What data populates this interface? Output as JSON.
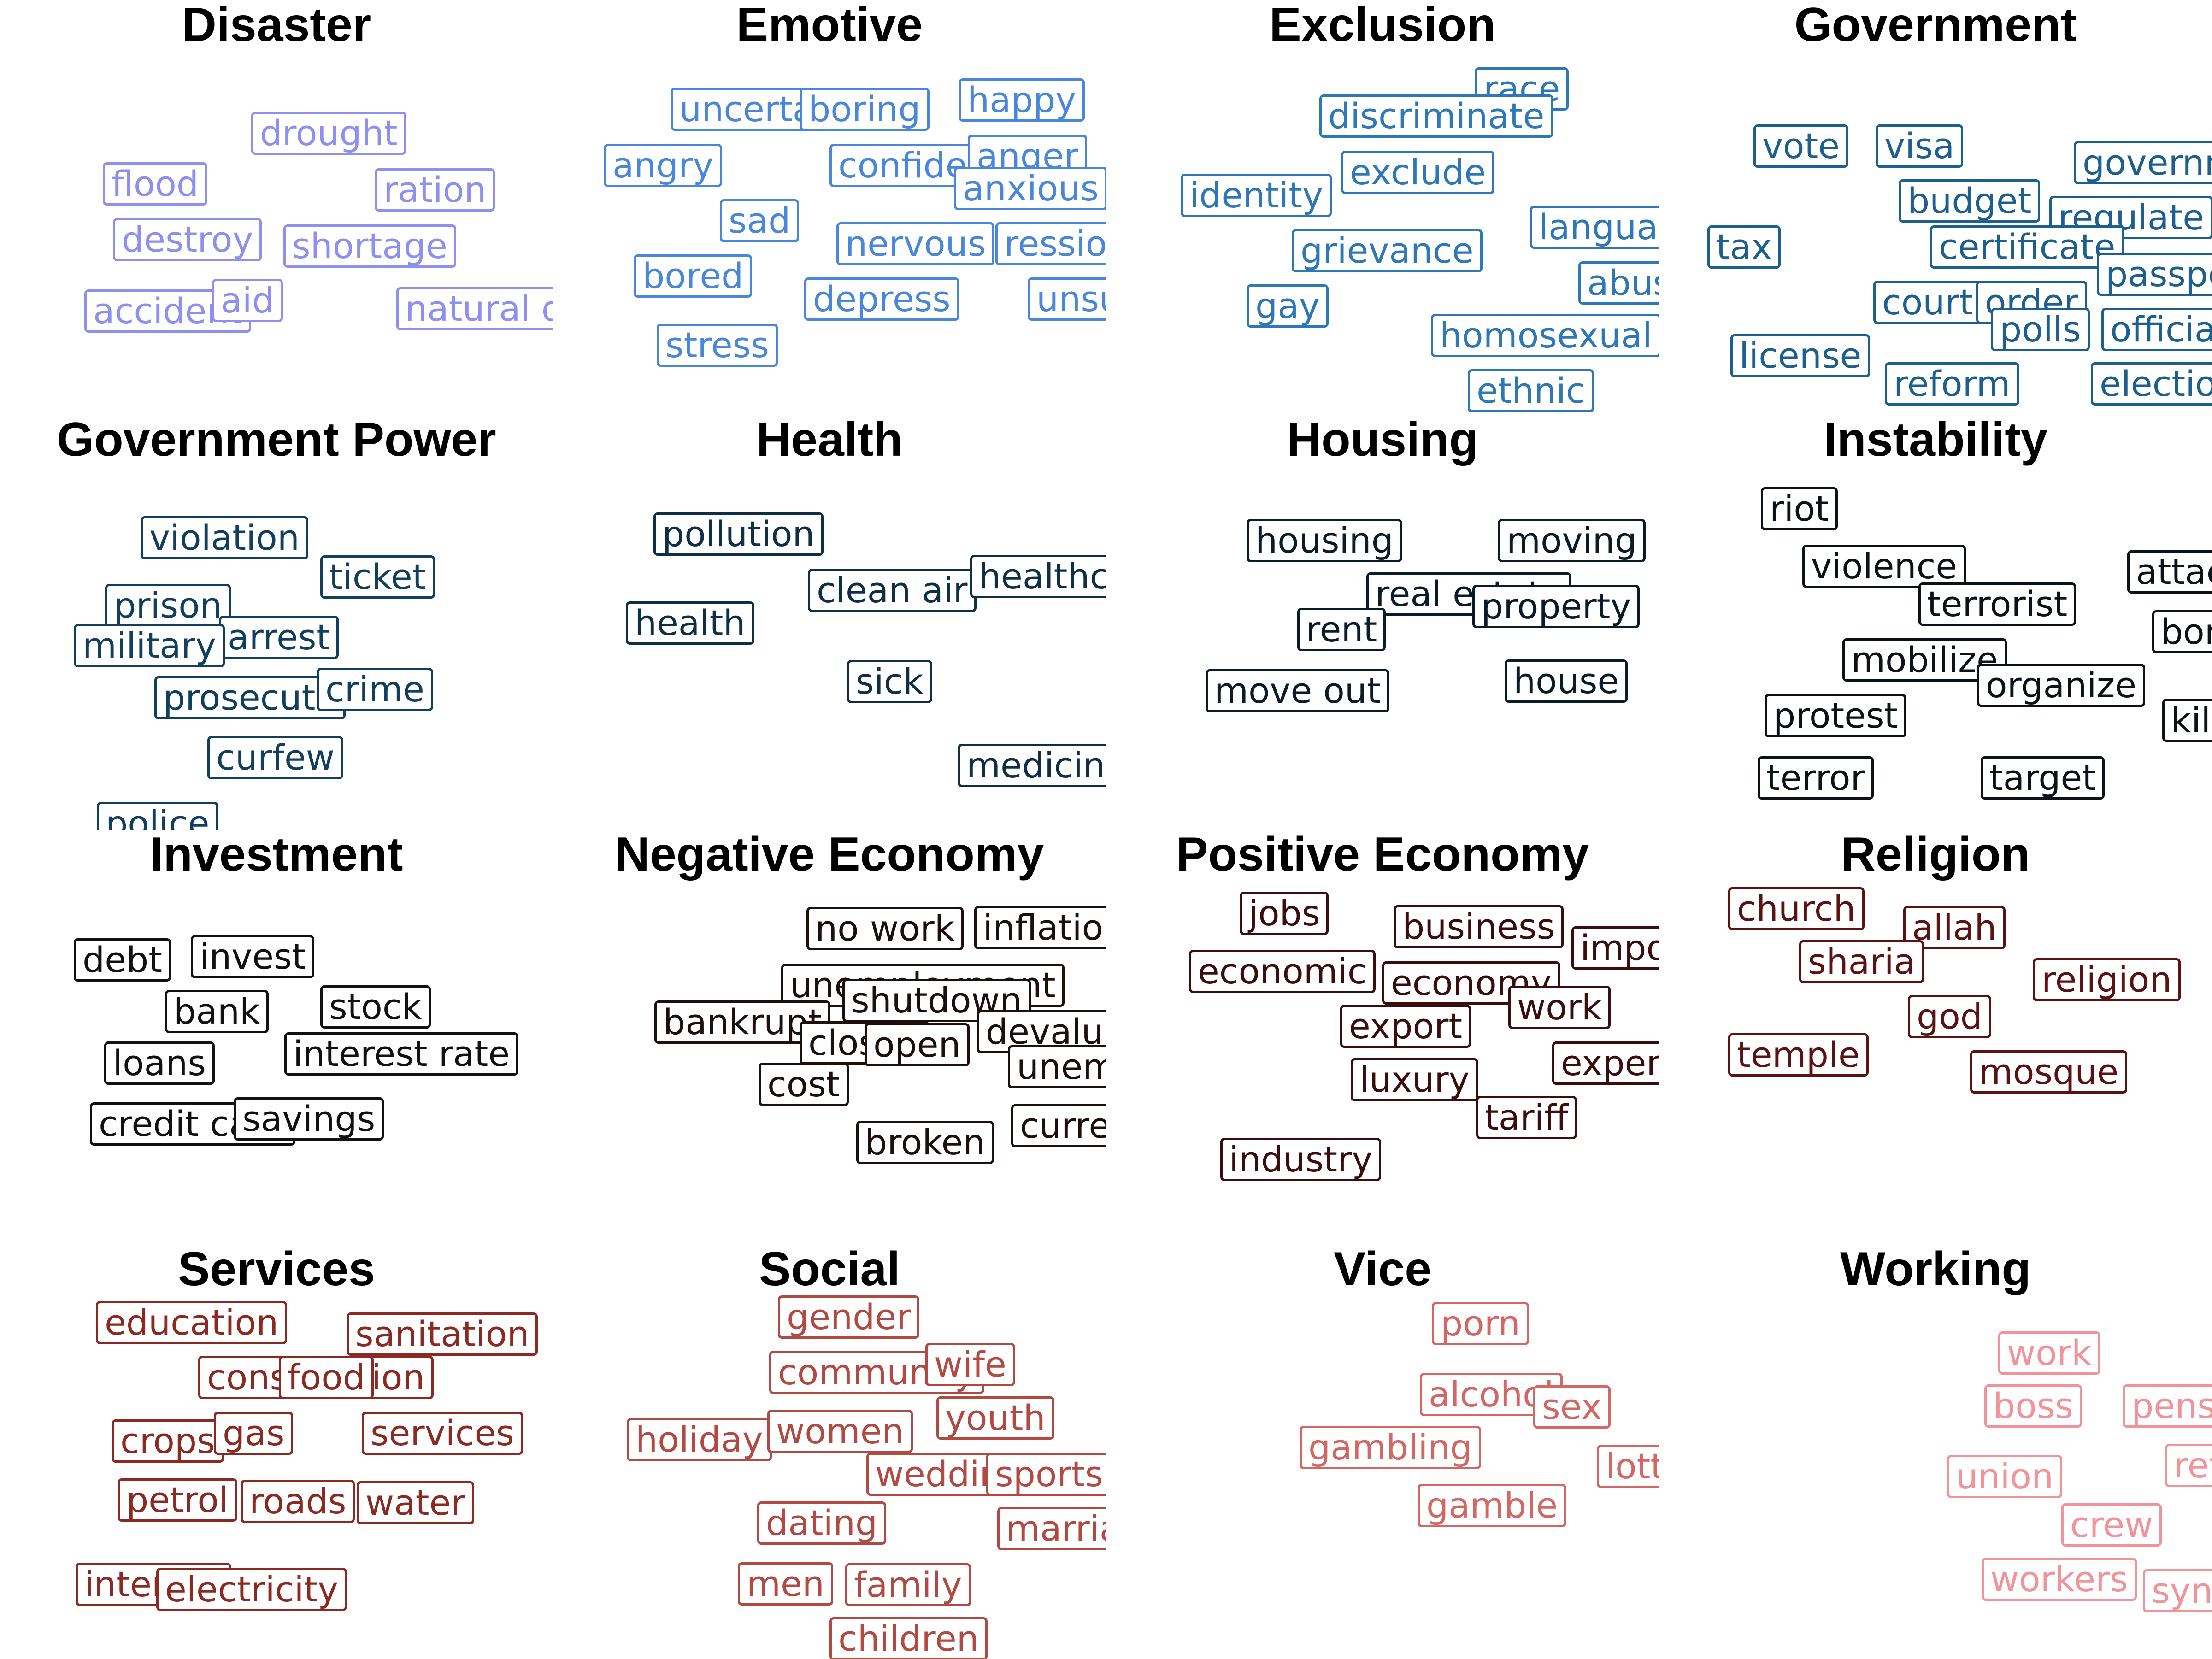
{
  "panels": [
    {
      "title": "Disaster",
      "color": "#8f8ff0",
      "words": [
        "drought",
        "flood",
        "ration",
        "destroy",
        "shortage",
        "accident",
        "aid",
        "natural disaster"
      ]
    },
    {
      "title": "Emotive",
      "color": "#4a86d9",
      "words": [
        "uncertain",
        "boring",
        "happy",
        "angry",
        "confident",
        "anger",
        "anxious",
        "sad",
        "nervous",
        "ression",
        "bored",
        "depress",
        "unsure",
        "stress"
      ]
    },
    {
      "title": "Exclusion",
      "color": "#2e78b8",
      "words": [
        "race",
        "discriminate",
        "exclude",
        "identity",
        "language",
        "grievance",
        "abuse",
        "gay",
        "homosexual",
        "ethnic"
      ]
    },
    {
      "title": "Government",
      "color": "#1d5f8f",
      "words": [
        "vote",
        "visa",
        "government",
        "budget",
        "regulate",
        "tax",
        "certificate",
        "passport",
        "court",
        "order",
        "polls",
        "official",
        "license",
        "reform",
        "election"
      ]
    },
    {
      "title": "Government Power",
      "color": "#123f5e",
      "words": [
        "violation",
        "ticket",
        "prison",
        "arrest",
        "military",
        "prosecute",
        "crime",
        "curfew",
        "police"
      ]
    },
    {
      "title": "Health",
      "color": "#0e2f45",
      "words": [
        "pollution",
        "clean air",
        "healthcare",
        "health",
        "sick",
        "medicine"
      ]
    },
    {
      "title": "Housing",
      "color": "#0b1c29",
      "words": [
        "housing",
        "moving",
        "real estate",
        "property",
        "rent",
        "move out",
        "house"
      ]
    },
    {
      "title": "Instability",
      "color": "#0d1118",
      "words": [
        "riot",
        "violence",
        "attack",
        "terrorist",
        "bombing",
        "mobilize",
        "organize",
        "protest",
        "kill",
        "terror",
        "target"
      ]
    },
    {
      "title": "Investment",
      "color": "#111111",
      "words": [
        "debt",
        "invest",
        "bank",
        "stock",
        "loans",
        "interest rate",
        "credit card",
        "savings"
      ]
    },
    {
      "title": "Negative Economy",
      "color": "#1e0f0f",
      "words": [
        "no work",
        "inflation",
        "unemployment",
        "shutdown",
        "bankrupt",
        "devalue",
        "closed",
        "open",
        "unemploy",
        "cost",
        "currency",
        "broken"
      ]
    },
    {
      "title": "Positive Economy",
      "color": "#3a0e0e",
      "words": [
        "jobs",
        "business",
        "import",
        "economic",
        "economy",
        "work",
        "export",
        "expensive",
        "luxury",
        "tariff",
        "industry"
      ]
    },
    {
      "title": "Religion",
      "color": "#5a1212",
      "words": [
        "church",
        "allah",
        "sharia",
        "religion",
        "god",
        "temple",
        "mosque"
      ]
    },
    {
      "title": "Services",
      "color": "#8a2a22",
      "words": [
        "education",
        "sanitation",
        "construction",
        "food",
        "crops",
        "gas",
        "services",
        "petrol",
        "roads",
        "water",
        "internet",
        "electricity"
      ]
    },
    {
      "title": "Social",
      "color": "#b14a42",
      "words": [
        "gender",
        "community",
        "wife",
        "youth",
        "holiday",
        "women",
        "wedding",
        "sports",
        "dating",
        "marriage",
        "men",
        "family",
        "children"
      ]
    },
    {
      "title": "Vice",
      "color": "#d26763",
      "words": [
        "porn",
        "alcohol",
        "sex",
        "gambling",
        "lottery",
        "gamble"
      ]
    },
    {
      "title": "Working",
      "color": "#f0949a",
      "words": [
        "work",
        "boss",
        "pension",
        "union",
        "retire",
        "crew",
        "workers",
        "syndicate"
      ]
    }
  ]
}
